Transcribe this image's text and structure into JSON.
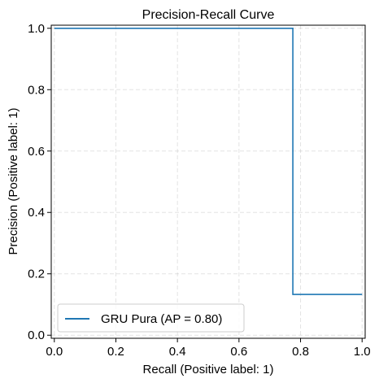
{
  "chart_data": {
    "type": "line",
    "title": "Precision-Recall Curve",
    "xlabel": "Recall (Positive label: 1)",
    "ylabel": "Precision (Positive label: 1)",
    "xlim": [
      -0.01,
      1.01
    ],
    "ylim": [
      -0.01,
      1.01
    ],
    "x_ticks": [
      "0.0",
      "0.2",
      "0.4",
      "0.6",
      "0.8",
      "1.0"
    ],
    "y_ticks": [
      "0.0",
      "0.2",
      "0.4",
      "0.6",
      "0.8",
      "1.0"
    ],
    "grid": true,
    "legend_position": "lower-left",
    "step": "post",
    "series": [
      {
        "name": "GRU Pura (AP = 0.80)",
        "color": "#1f77b4",
        "recall": [
          1.0,
          0.775,
          0.775,
          0.0
        ],
        "precision": [
          0.133,
          0.133,
          1.0,
          1.0
        ]
      }
    ]
  }
}
